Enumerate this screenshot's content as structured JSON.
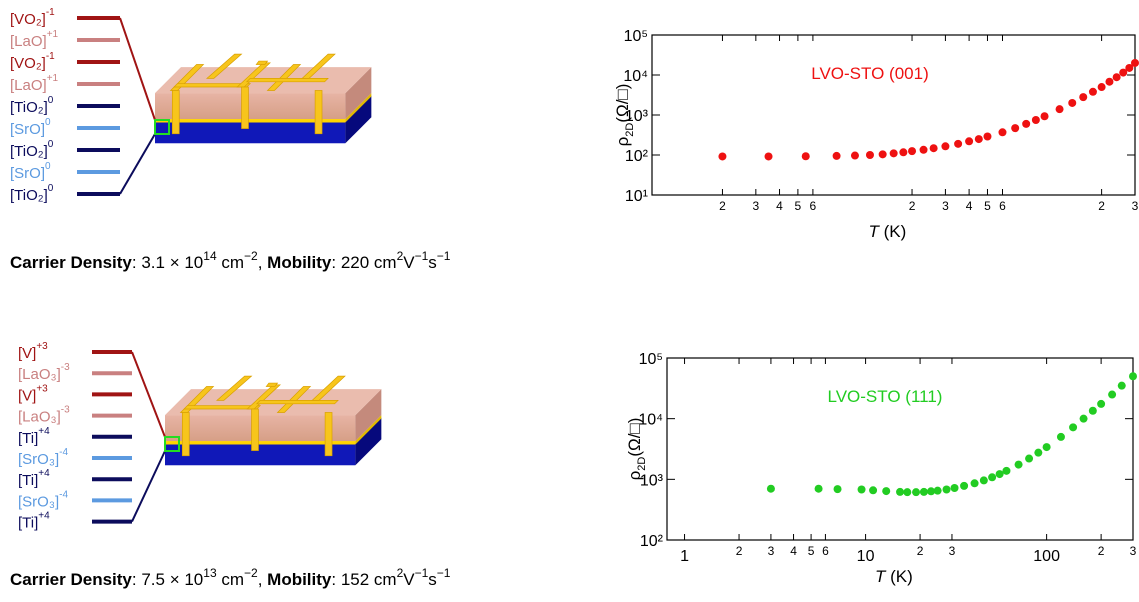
{
  "left_panels": [
    {
      "layers": [
        {
          "label": "[VO₂]",
          "charge": "-1",
          "color": "#a01414"
        },
        {
          "label": "[LaO]",
          "charge": "+1",
          "color": "#c98080"
        },
        {
          "label": "[VO₂]",
          "charge": "-1",
          "color": "#a01414"
        },
        {
          "label": "[LaO]",
          "charge": "+1",
          "color": "#c98080"
        },
        {
          "label": "[TiO₂]",
          "charge": "0",
          "color": "#0c0c5c"
        },
        {
          "label": "[SrO]",
          "charge": "0",
          "color": "#5c9ae0"
        },
        {
          "label": "[TiO₂]",
          "charge": "0",
          "color": "#0c0c5c"
        },
        {
          "label": "[SrO]",
          "charge": "0",
          "color": "#5c9ae0"
        },
        {
          "label": "[TiO₂]",
          "charge": "0",
          "color": "#0c0c5c"
        }
      ],
      "caption": [
        {
          "text": "Carrier Density",
          "style": "bold"
        },
        {
          "text": ": 3.1 × 10",
          "style": "normal"
        },
        {
          "text": "14",
          "style": "sup"
        },
        {
          "text": " cm",
          "style": "normal"
        },
        {
          "text": "−2",
          "style": "sup"
        },
        {
          "text": ", ",
          "style": "normal"
        },
        {
          "text": "Mobility",
          "style": "bold"
        },
        {
          "text": ": 220 cm",
          "style": "normal"
        },
        {
          "text": "2",
          "style": "sup"
        },
        {
          "text": "V",
          "style": "normal"
        },
        {
          "text": "−1",
          "style": "sup"
        },
        {
          "text": "s",
          "style": "normal"
        },
        {
          "text": "−1",
          "style": "sup"
        }
      ]
    },
    {
      "layers": [
        {
          "label": "[V]",
          "charge": "+3",
          "color": "#a01414"
        },
        {
          "label": "[LaO₃]",
          "charge": "-3",
          "color": "#c98080"
        },
        {
          "label": "[V]",
          "charge": "+3",
          "color": "#a01414"
        },
        {
          "label": "[LaO₃]",
          "charge": "-3",
          "color": "#c98080"
        },
        {
          "label": "[Ti]",
          "charge": "+4",
          "color": "#0c0c5c"
        },
        {
          "label": "[SrO₃]",
          "charge": "-4",
          "color": "#5c9ae0"
        },
        {
          "label": "[Ti]",
          "charge": "+4",
          "color": "#0c0c5c"
        },
        {
          "label": "[SrO₃]",
          "charge": "-4",
          "color": "#5c9ae0"
        },
        {
          "label": "[Ti]",
          "charge": "+4",
          "color": "#0c0c5c"
        }
      ],
      "caption": [
        {
          "text": "Carrier Density",
          "style": "bold"
        },
        {
          "text": ": 7.5 × 10",
          "style": "normal"
        },
        {
          "text": "13",
          "style": "sup"
        },
        {
          "text": " cm",
          "style": "normal"
        },
        {
          "text": "−2",
          "style": "sup"
        },
        {
          "text": ", ",
          "style": "normal"
        },
        {
          "text": "Mobility",
          "style": "bold"
        },
        {
          "text": ": 152 cm",
          "style": "normal"
        },
        {
          "text": "2",
          "style": "sup"
        },
        {
          "text": "V",
          "style": "normal"
        },
        {
          "text": "−1",
          "style": "sup"
        },
        {
          "text": "s",
          "style": "normal"
        },
        {
          "text": "−1",
          "style": "sup"
        }
      ]
    }
  ],
  "chart_data": [
    {
      "type": "scatter",
      "xscale": "log",
      "yscale": "log",
      "annotation": "LVO-STO (001)",
      "xlabel": {
        "symbol": "T",
        "unit": " (K)"
      },
      "ylabel": {
        "symbol": "ρ",
        "sub": "2D",
        "unit": "(Ω/□)"
      },
      "xlim": [
        0.85,
        300
      ],
      "ylim": [
        10,
        100000
      ],
      "xticks": [
        2,
        3,
        4,
        5,
        6,
        {
          "value": 20,
          "label": "2"
        },
        {
          "value": 30,
          "label": "3"
        },
        {
          "value": 40,
          "label": "4"
        },
        {
          "value": 50,
          "label": "5"
        },
        {
          "value": 60,
          "label": "6"
        },
        {
          "value": 200,
          "label": "2"
        },
        {
          "value": 300,
          "label": "3"
        }
      ],
      "yticks": [
        {
          "value": 10,
          "label": "10¹"
        },
        {
          "value": 100,
          "label": "10²"
        },
        {
          "value": 1000,
          "label": "10³"
        },
        {
          "value": 10000,
          "label": "10⁴"
        },
        {
          "value": 100000,
          "label": "10⁵"
        }
      ],
      "series": [
        {
          "name": "LVO-STO (001)",
          "color": "#ee1111",
          "x": [
            2,
            3.5,
            5.5,
            8,
            10,
            12,
            14,
            16,
            18,
            20,
            23,
            26,
            30,
            35,
            40,
            45,
            50,
            60,
            70,
            80,
            90,
            100,
            120,
            140,
            160,
            180,
            200,
            220,
            240,
            260,
            280,
            300
          ],
          "values": [
            92,
            92,
            93,
            95,
            97,
            100,
            104,
            110,
            117,
            125,
            135,
            148,
            165,
            190,
            220,
            250,
            290,
            370,
            470,
            600,
            750,
            930,
            1400,
            2000,
            2800,
            3800,
            5000,
            6800,
            8800,
            11500,
            15000,
            20000
          ]
        }
      ]
    },
    {
      "type": "scatter",
      "xscale": "log",
      "yscale": "log",
      "annotation": "LVO-STO (111)",
      "xlabel": {
        "symbol": "T",
        "unit": " (K)"
      },
      "ylabel": {
        "symbol": "ρ",
        "sub": "2D",
        "unit": "(Ω/□)"
      },
      "xlim": [
        0.8,
        300
      ],
      "ylim": [
        100,
        100000
      ],
      "xticks": [
        1,
        2,
        3,
        4,
        5,
        6,
        10,
        {
          "value": 20,
          "label": "2"
        },
        {
          "value": 30,
          "label": "3"
        },
        100,
        {
          "value": 200,
          "label": "2"
        },
        {
          "value": 300,
          "label": "3"
        }
      ],
      "yticks": [
        {
          "value": 100,
          "label": "10²"
        },
        {
          "value": 1000,
          "label": "10³"
        },
        {
          "value": 10000,
          "label": "10⁴"
        },
        {
          "value": 100000,
          "label": "10⁵"
        }
      ],
      "series": [
        {
          "name": "LVO-STO (111)",
          "color": "#22cc22",
          "x": [
            3,
            5.5,
            7,
            9.5,
            11,
            13,
            15.5,
            17,
            19,
            21,
            23,
            25,
            28,
            31,
            35,
            40,
            45,
            50,
            55,
            60,
            70,
            80,
            90,
            100,
            120,
            140,
            160,
            180,
            200,
            230,
            260,
            300
          ],
          "values": [
            700,
            700,
            690,
            680,
            660,
            640,
            620,
            615,
            615,
            620,
            635,
            650,
            680,
            720,
            780,
            860,
            960,
            1080,
            1220,
            1380,
            1750,
            2200,
            2750,
            3400,
            5000,
            7200,
            10000,
            13500,
            17500,
            25000,
            35000,
            50000
          ]
        }
      ]
    }
  ]
}
